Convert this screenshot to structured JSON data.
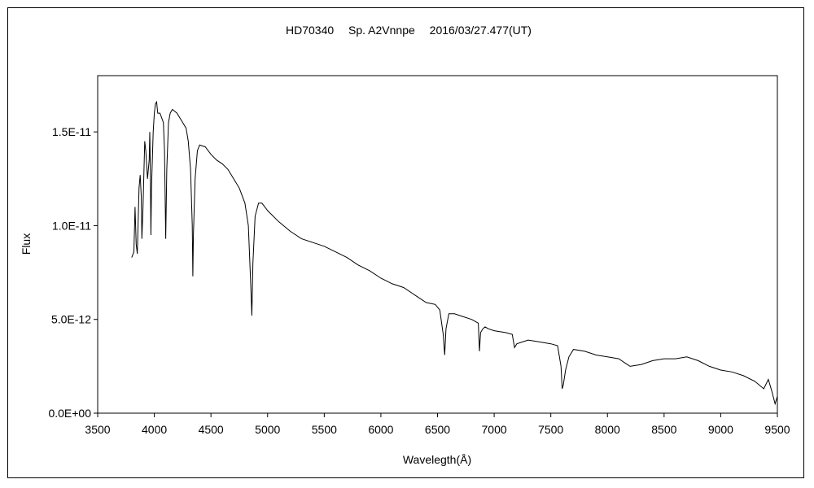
{
  "chart_data": {
    "type": "line",
    "title": "HD70340　 Sp. A2Vnnpe　 2016/03/27.477(UT)",
    "xlabel": "Wavelegth(Å)",
    "ylabel": "Flux",
    "xlim": [
      3500,
      9500
    ],
    "ylim": [
      0,
      1.8e-11
    ],
    "x_ticks": [
      3500,
      4000,
      4500,
      5000,
      5500,
      6000,
      6500,
      7000,
      7500,
      8000,
      8500,
      9000,
      9500
    ],
    "x_tick_labels": [
      "3500",
      "4000",
      "4500",
      "5000",
      "5500",
      "6000",
      "6500",
      "7000",
      "7500",
      "8000",
      "8500",
      "9000",
      "9500"
    ],
    "y_ticks": [
      0,
      5e-12,
      1e-11,
      1.5e-11
    ],
    "y_tick_labels": [
      "0.0E+00",
      "5.0E-12",
      "1.0E-11",
      "1.5E-11"
    ],
    "grid": false,
    "series": [
      {
        "color": "#000000",
        "points": [
          [
            3800,
            8.3e-12
          ],
          [
            3820,
            8.6e-12
          ],
          [
            3830,
            1.1e-11
          ],
          [
            3840,
            9e-12
          ],
          [
            3850,
            8.5e-12
          ],
          [
            3865,
            1.2e-11
          ],
          [
            3875,
            1.27e-11
          ],
          [
            3885,
            1.15e-11
          ],
          [
            3890,
            9.3e-12
          ],
          [
            3900,
            1.1e-11
          ],
          [
            3915,
            1.45e-11
          ],
          [
            3925,
            1.4e-11
          ],
          [
            3940,
            1.25e-11
          ],
          [
            3955,
            1.35e-11
          ],
          [
            3960,
            1.5e-11
          ],
          [
            3965,
            1.3e-11
          ],
          [
            3970,
            9.5e-12
          ],
          [
            3975,
            1.2e-11
          ],
          [
            3990,
            1.5e-11
          ],
          [
            4000,
            1.6e-11
          ],
          [
            4010,
            1.65e-11
          ],
          [
            4020,
            1.66e-11
          ],
          [
            4030,
            1.6e-11
          ],
          [
            4050,
            1.6e-11
          ],
          [
            4080,
            1.55e-11
          ],
          [
            4090,
            1.4e-11
          ],
          [
            4101,
            9.3e-12
          ],
          [
            4110,
            1.3e-11
          ],
          [
            4125,
            1.55e-11
          ],
          [
            4140,
            1.6e-11
          ],
          [
            4160,
            1.62e-11
          ],
          [
            4200,
            1.6e-11
          ],
          [
            4250,
            1.55e-11
          ],
          [
            4280,
            1.52e-11
          ],
          [
            4300,
            1.45e-11
          ],
          [
            4320,
            1.3e-11
          ],
          [
            4335,
            1e-11
          ],
          [
            4340,
            7.3e-12
          ],
          [
            4345,
            9.5e-12
          ],
          [
            4360,
            1.25e-11
          ],
          [
            4380,
            1.4e-11
          ],
          [
            4400,
            1.43e-11
          ],
          [
            4450,
            1.42e-11
          ],
          [
            4500,
            1.38e-11
          ],
          [
            4550,
            1.35e-11
          ],
          [
            4600,
            1.33e-11
          ],
          [
            4650,
            1.3e-11
          ],
          [
            4700,
            1.25e-11
          ],
          [
            4750,
            1.2e-11
          ],
          [
            4800,
            1.12e-11
          ],
          [
            4830,
            1e-11
          ],
          [
            4850,
            7e-12
          ],
          [
            4861,
            5.2e-12
          ],
          [
            4870,
            8e-12
          ],
          [
            4890,
            1.05e-11
          ],
          [
            4920,
            1.12e-11
          ],
          [
            4950,
            1.12e-11
          ],
          [
            5000,
            1.08e-11
          ],
          [
            5100,
            1.02e-11
          ],
          [
            5200,
            9.7e-12
          ],
          [
            5300,
            9.3e-12
          ],
          [
            5400,
            9.1e-12
          ],
          [
            5500,
            8.9e-12
          ],
          [
            5600,
            8.6e-12
          ],
          [
            5700,
            8.3e-12
          ],
          [
            5800,
            7.9e-12
          ],
          [
            5900,
            7.6e-12
          ],
          [
            6000,
            7.2e-12
          ],
          [
            6100,
            6.9e-12
          ],
          [
            6200,
            6.7e-12
          ],
          [
            6300,
            6.3e-12
          ],
          [
            6400,
            5.9e-12
          ],
          [
            6480,
            5.8e-12
          ],
          [
            6520,
            5.5e-12
          ],
          [
            6550,
            4.2e-12
          ],
          [
            6563,
            3.1e-12
          ],
          [
            6575,
            4.5e-12
          ],
          [
            6600,
            5.3e-12
          ],
          [
            6650,
            5.3e-12
          ],
          [
            6700,
            5.2e-12
          ],
          [
            6800,
            5e-12
          ],
          [
            6860,
            4.8e-12
          ],
          [
            6870,
            3.3e-12
          ],
          [
            6880,
            4.3e-12
          ],
          [
            6900,
            4.5e-12
          ],
          [
            6920,
            4.6e-12
          ],
          [
            6950,
            4.5e-12
          ],
          [
            7000,
            4.4e-12
          ],
          [
            7100,
            4.3e-12
          ],
          [
            7160,
            4.2e-12
          ],
          [
            7180,
            3.5e-12
          ],
          [
            7200,
            3.7e-12
          ],
          [
            7250,
            3.8e-12
          ],
          [
            7300,
            3.9e-12
          ],
          [
            7400,
            3.8e-12
          ],
          [
            7500,
            3.7e-12
          ],
          [
            7560,
            3.6e-12
          ],
          [
            7590,
            2.5e-12
          ],
          [
            7600,
            1.3e-12
          ],
          [
            7610,
            1.5e-12
          ],
          [
            7630,
            2.3e-12
          ],
          [
            7660,
            3e-12
          ],
          [
            7700,
            3.4e-12
          ],
          [
            7800,
            3.3e-12
          ],
          [
            7900,
            3.1e-12
          ],
          [
            8000,
            3e-12
          ],
          [
            8100,
            2.9e-12
          ],
          [
            8150,
            2.7e-12
          ],
          [
            8200,
            2.5e-12
          ],
          [
            8300,
            2.6e-12
          ],
          [
            8400,
            2.8e-12
          ],
          [
            8500,
            2.9e-12
          ],
          [
            8600,
            2.9e-12
          ],
          [
            8700,
            3e-12
          ],
          [
            8800,
            2.8e-12
          ],
          [
            8900,
            2.5e-12
          ],
          [
            9000,
            2.3e-12
          ],
          [
            9100,
            2.2e-12
          ],
          [
            9200,
            2e-12
          ],
          [
            9300,
            1.7e-12
          ],
          [
            9380,
            1.3e-12
          ],
          [
            9420,
            1.8e-12
          ],
          [
            9450,
            1.2e-12
          ],
          [
            9480,
            5e-13
          ],
          [
            9500,
            9e-13
          ]
        ]
      }
    ]
  }
}
